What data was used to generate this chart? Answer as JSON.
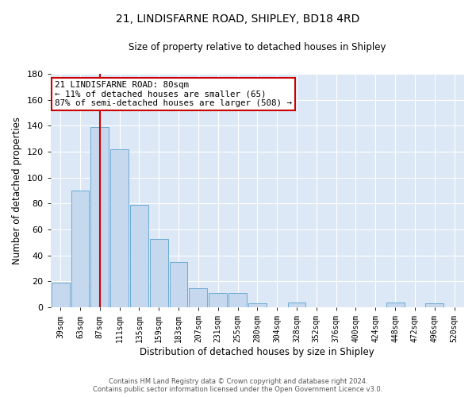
{
  "title": "21, LINDISFARNE ROAD, SHIPLEY, BD18 4RD",
  "subtitle": "Size of property relative to detached houses in Shipley",
  "xlabel": "Distribution of detached houses by size in Shipley",
  "ylabel": "Number of detached properties",
  "bar_labels": [
    "39sqm",
    "63sqm",
    "87sqm",
    "111sqm",
    "135sqm",
    "159sqm",
    "183sqm",
    "207sqm",
    "231sqm",
    "255sqm",
    "280sqm",
    "304sqm",
    "328sqm",
    "352sqm",
    "376sqm",
    "400sqm",
    "424sqm",
    "448sqm",
    "472sqm",
    "496sqm",
    "520sqm"
  ],
  "bar_values": [
    19,
    90,
    139,
    122,
    79,
    53,
    35,
    15,
    11,
    11,
    3,
    0,
    4,
    0,
    0,
    0,
    0,
    4,
    0,
    3,
    0
  ],
  "bar_color": "#c5d8ee",
  "bar_edge_color": "#6aaad4",
  "vline_x": 2,
  "vline_color": "#cc0000",
  "annotation_text": "21 LINDISFARNE ROAD: 80sqm\n← 11% of detached houses are smaller (65)\n87% of semi-detached houses are larger (508) →",
  "annotation_box_color": "#ffffff",
  "annotation_box_edge": "#cc0000",
  "ylim": [
    0,
    180
  ],
  "yticks": [
    0,
    20,
    40,
    60,
    80,
    100,
    120,
    140,
    160,
    180
  ],
  "footer_line1": "Contains HM Land Registry data © Crown copyright and database right 2024.",
  "footer_line2": "Contains public sector information licensed under the Open Government Licence v3.0.",
  "bg_color": "#ffffff",
  "plot_bg_color": "#dce8f5"
}
